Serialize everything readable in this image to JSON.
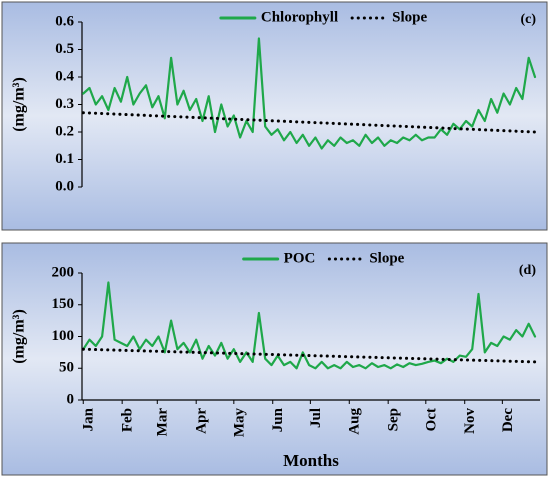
{
  "chart_data": [
    {
      "type": "line",
      "annotation": "(c)",
      "ylabel": "(mg/m³)",
      "legend": "top",
      "ylim": [
        0,
        0.6
      ],
      "yticks": [
        {
          "value": 0,
          "label": "0.0"
        },
        0.1,
        0.2,
        0.3,
        0.4,
        0.5,
        0.6
      ],
      "xlim": [
        0,
        365
      ],
      "x": [
        1,
        6,
        11,
        16,
        21,
        26,
        31,
        36,
        41,
        46,
        51,
        56,
        61,
        66,
        71,
        76,
        81,
        86,
        91,
        96,
        101,
        106,
        111,
        116,
        121,
        126,
        131,
        136,
        141,
        146,
        151,
        156,
        161,
        166,
        171,
        176,
        181,
        186,
        191,
        196,
        201,
        206,
        211,
        216,
        221,
        226,
        231,
        236,
        241,
        246,
        251,
        256,
        261,
        266,
        271,
        276,
        281,
        286,
        291,
        296,
        301,
        306,
        311,
        316,
        321,
        326,
        331,
        336,
        341,
        346,
        351,
        356,
        361
      ],
      "series": [
        {
          "name": "Chlorophyll",
          "color": "#1fa84a",
          "dash": "solid",
          "values": [
            0.34,
            0.36,
            0.3,
            0.33,
            0.28,
            0.36,
            0.31,
            0.4,
            0.3,
            0.34,
            0.37,
            0.29,
            0.33,
            0.25,
            0.47,
            0.3,
            0.35,
            0.28,
            0.32,
            0.24,
            0.33,
            0.2,
            0.3,
            0.22,
            0.26,
            0.18,
            0.24,
            0.2,
            0.54,
            0.22,
            0.19,
            0.21,
            0.17,
            0.2,
            0.16,
            0.19,
            0.15,
            0.18,
            0.14,
            0.17,
            0.15,
            0.18,
            0.16,
            0.17,
            0.15,
            0.19,
            0.16,
            0.18,
            0.15,
            0.17,
            0.16,
            0.18,
            0.17,
            0.19,
            0.17,
            0.18,
            0.18,
            0.21,
            0.19,
            0.23,
            0.21,
            0.24,
            0.22,
            0.28,
            0.24,
            0.32,
            0.27,
            0.34,
            0.3,
            0.36,
            0.32,
            0.47,
            0.4
          ]
        },
        {
          "name": "Slope",
          "color": "#000000",
          "dash": "dotted",
          "x": [
            1,
            361
          ],
          "values": [
            0.27,
            0.2
          ]
        }
      ]
    },
    {
      "type": "line",
      "annotation": "(d)",
      "ylabel": "(mg/m³)",
      "xlabel": "Months",
      "legend": "top",
      "ylim": [
        0,
        200
      ],
      "yticks": [
        0,
        50,
        100,
        150,
        200
      ],
      "xlim": [
        0,
        365
      ],
      "xticks": [
        {
          "value": 1,
          "label": "Jan"
        },
        {
          "value": 32,
          "label": "Feb"
        },
        {
          "value": 60,
          "label": "Mar"
        },
        {
          "value": 91,
          "label": "Apr"
        },
        {
          "value": 121,
          "label": "May"
        },
        {
          "value": 152,
          "label": "Jun"
        },
        {
          "value": 182,
          "label": "Jul"
        },
        {
          "value": 213,
          "label": "Aug"
        },
        {
          "value": 244,
          "label": "Sep"
        },
        {
          "value": 274,
          "label": "Oct"
        },
        {
          "value": 305,
          "label": "Nov"
        },
        {
          "value": 335,
          "label": "Dec"
        }
      ],
      "x": [
        1,
        6,
        11,
        16,
        21,
        26,
        31,
        36,
        41,
        46,
        51,
        56,
        61,
        66,
        71,
        76,
        81,
        86,
        91,
        96,
        101,
        106,
        111,
        116,
        121,
        126,
        131,
        136,
        141,
        146,
        151,
        156,
        161,
        166,
        171,
        176,
        181,
        186,
        191,
        196,
        201,
        206,
        211,
        216,
        221,
        226,
        231,
        236,
        241,
        246,
        251,
        256,
        261,
        266,
        271,
        276,
        281,
        286,
        291,
        296,
        301,
        306,
        311,
        316,
        321,
        326,
        331,
        336,
        341,
        346,
        351,
        356,
        361
      ],
      "series": [
        {
          "name": "POC",
          "color": "#1fa84a",
          "dash": "solid",
          "values": [
            80,
            95,
            85,
            100,
            185,
            95,
            90,
            85,
            100,
            80,
            95,
            85,
            100,
            75,
            125,
            80,
            90,
            75,
            95,
            65,
            85,
            70,
            90,
            65,
            80,
            60,
            75,
            60,
            137,
            65,
            55,
            70,
            55,
            60,
            50,
            75,
            55,
            50,
            60,
            50,
            55,
            50,
            60,
            52,
            55,
            50,
            58,
            52,
            55,
            50,
            56,
            52,
            58,
            55,
            57,
            60,
            62,
            58,
            65,
            60,
            70,
            68,
            80,
            167,
            75,
            90,
            85,
            100,
            95,
            110,
            100,
            120,
            100
          ]
        },
        {
          "name": "Slope",
          "color": "#000000",
          "dash": "dotted",
          "x": [
            1,
            361
          ],
          "values": [
            80,
            60
          ]
        }
      ]
    }
  ]
}
